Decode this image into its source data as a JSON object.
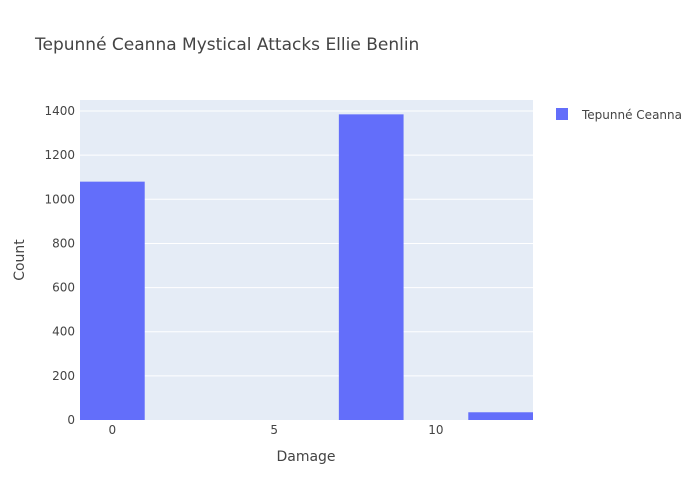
{
  "chart_data": {
    "type": "bar",
    "title": "Tepunné Ceanna Mystical Attacks Ellie Benlin",
    "xlabel": "Damage",
    "ylabel": "Count",
    "xlim": [
      -1,
      13
    ],
    "ylim": [
      0,
      1450
    ],
    "x_ticks": [
      0,
      5,
      10
    ],
    "y_ticks": [
      0,
      200,
      400,
      600,
      800,
      1000,
      1200,
      1400
    ],
    "bin_width": 2,
    "series": [
      {
        "name": "Tepunné Ceanna",
        "color": "#636efa",
        "bins": [
          {
            "x_start": -1,
            "x_end": 1,
            "value": 1080
          },
          {
            "x_start": 1,
            "x_end": 3,
            "value": 0
          },
          {
            "x_start": 3,
            "x_end": 5,
            "value": 0
          },
          {
            "x_start": 5,
            "x_end": 7,
            "value": 0
          },
          {
            "x_start": 7,
            "x_end": 9,
            "value": 1385
          },
          {
            "x_start": 9,
            "x_end": 11,
            "value": 0
          },
          {
            "x_start": 11,
            "x_end": 13,
            "value": 35
          }
        ]
      }
    ],
    "grid": true,
    "legend_position": "top-right",
    "plot_background": "#e5ecf6"
  }
}
